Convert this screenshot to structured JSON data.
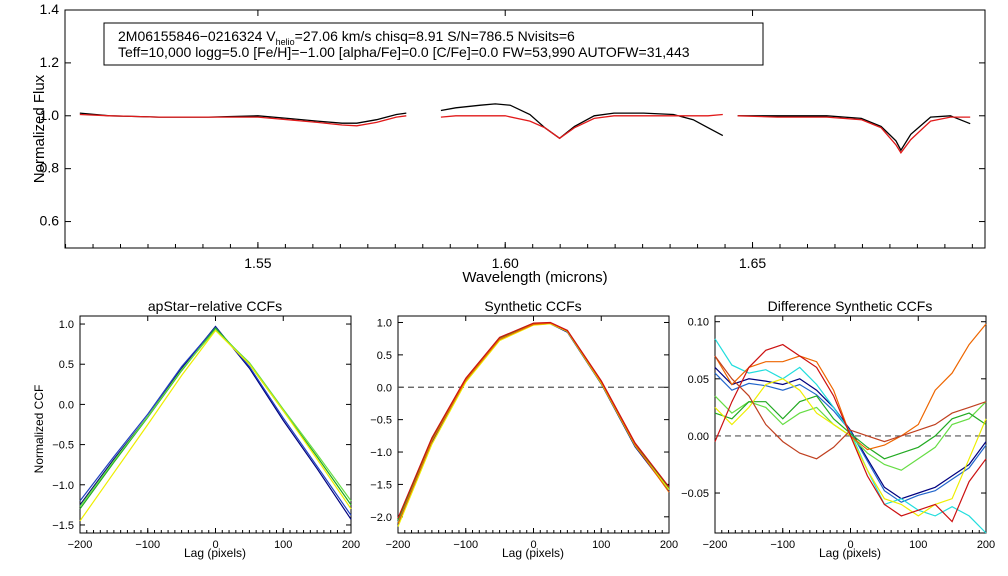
{
  "chart_data": [
    {
      "type": "line",
      "id": "spectrum",
      "xlabel": "Wavelength (microns)",
      "ylabel": "Normalized Flux",
      "xlim": [
        1.511,
        1.697
      ],
      "ylim": [
        0.5,
        1.4
      ],
      "xticks": [
        "1.55",
        "1.60",
        "1.65"
      ],
      "yticks": [
        "0.6",
        "0.8",
        "1.0",
        "1.2",
        "1.4"
      ],
      "info_box": {
        "line1_prefix": "2M06155846−0216324  V",
        "line1_sub": "helio",
        "line1_suffix": "=27.06 km/s  chisq=8.91  S/N=786.5  Nvisits=6",
        "line2": "Teff=10,000 logg=5.0 [Fe/H]=−1.00 [alpha/Fe]=0.0 [C/Fe]=0.0 FW=53,990 AUTOFW=31,443"
      },
      "chips": [
        {
          "range": [
            1.514,
            1.58
          ]
        },
        {
          "range": [
            1.587,
            1.644
          ]
        },
        {
          "range": [
            1.647,
            1.694
          ]
        }
      ],
      "series": [
        {
          "name": "observed",
          "color": "#000000",
          "x": [
            1.514,
            1.52,
            1.53,
            1.54,
            1.55,
            1.556,
            1.562,
            1.567,
            1.57,
            1.574,
            1.578,
            1.58,
            1.587,
            1.59,
            1.595,
            1.598,
            1.601,
            1.605,
            1.608,
            1.611,
            1.614,
            1.618,
            1.622,
            1.628,
            1.634,
            1.638,
            1.641,
            1.644,
            1.647,
            1.655,
            1.665,
            1.672,
            1.676,
            1.679,
            1.68,
            1.682,
            1.686,
            1.69,
            1.694
          ],
          "y": [
            1.01,
            1.0,
            0.995,
            0.995,
            1.0,
            0.99,
            0.98,
            0.972,
            0.972,
            0.985,
            1.005,
            1.01,
            1.02,
            1.03,
            1.04,
            1.045,
            1.04,
            1.005,
            0.955,
            0.915,
            0.96,
            1.0,
            1.01,
            1.01,
            1.005,
            0.985,
            0.955,
            0.925,
            1.0,
            1.0,
            1.0,
            0.99,
            0.96,
            0.905,
            0.87,
            0.93,
            0.995,
            1.0,
            0.97
          ]
        },
        {
          "name": "synthetic",
          "color": "#e11a1a",
          "x": [
            1.514,
            1.52,
            1.53,
            1.54,
            1.55,
            1.556,
            1.562,
            1.567,
            1.57,
            1.574,
            1.578,
            1.58,
            1.587,
            1.59,
            1.595,
            1.6,
            1.605,
            1.608,
            1.611,
            1.614,
            1.618,
            1.622,
            1.628,
            1.634,
            1.638,
            1.641,
            1.644,
            1.647,
            1.655,
            1.665,
            1.672,
            1.676,
            1.679,
            1.68,
            1.682,
            1.686,
            1.69,
            1.694
          ],
          "y": [
            1.005,
            1.0,
            0.995,
            0.995,
            0.995,
            0.985,
            0.975,
            0.965,
            0.962,
            0.975,
            0.995,
            1.0,
            0.995,
            1.0,
            1.0,
            1.0,
            0.98,
            0.955,
            0.915,
            0.955,
            0.99,
            1.0,
            1.0,
            1.0,
            1.0,
            1.0,
            1.005,
            1.0,
            0.995,
            0.995,
            0.985,
            0.955,
            0.89,
            0.86,
            0.91,
            0.98,
            0.995,
            0.995
          ]
        }
      ]
    },
    {
      "type": "line",
      "id": "apstar_ccf",
      "title": "apStar−relative CCFs",
      "xlabel": "Lag (pixels)",
      "ylabel": "Normalized CCF",
      "xlim": [
        -200,
        200
      ],
      "ylim": [
        -1.6,
        1.1
      ],
      "xticks": [
        "−200",
        "−100",
        "0",
        "100",
        "200"
      ],
      "yticks": [
        "−1.5",
        "−1.0",
        "−0.5",
        "0.0",
        "0.5",
        "1.0"
      ],
      "x": [
        -200,
        -150,
        -100,
        -50,
        0,
        50,
        100,
        150,
        200
      ],
      "series": [
        {
          "name": "navy",
          "color": "#00007f",
          "values": [
            -1.25,
            -0.68,
            -0.15,
            0.45,
            0.97,
            0.45,
            -0.2,
            -0.8,
            -1.43
          ]
        },
        {
          "name": "blue",
          "color": "#2040c0",
          "values": [
            -1.2,
            -0.65,
            -0.12,
            0.47,
            0.96,
            0.47,
            -0.17,
            -0.77,
            -1.38
          ]
        },
        {
          "name": "green",
          "color": "#22aa22",
          "values": [
            -1.3,
            -0.72,
            -0.16,
            0.42,
            0.95,
            0.5,
            -0.08,
            -0.65,
            -1.25
          ]
        },
        {
          "name": "lime",
          "color": "#66dd44",
          "values": [
            -1.27,
            -0.7,
            -0.15,
            0.43,
            0.93,
            0.52,
            -0.06,
            -0.62,
            -1.2
          ]
        },
        {
          "name": "yellow",
          "color": "#eeee00",
          "values": [
            -1.45,
            -0.85,
            -0.25,
            0.36,
            0.92,
            0.5,
            -0.08,
            -0.68,
            -1.3
          ]
        }
      ]
    },
    {
      "type": "line",
      "id": "synthetic_ccf",
      "title": "Synthetic CCFs",
      "xlabel": "Lag (pixels)",
      "ylabel": "",
      "xlim": [
        -200,
        200
      ],
      "ylim": [
        -2.25,
        1.1
      ],
      "reference_line": 0,
      "xticks": [
        "−200",
        "−100",
        "0",
        "100",
        "200"
      ],
      "yticks": [
        "−2.0",
        "−1.5",
        "−1.0",
        "−0.5",
        "0.0",
        "0.5",
        "1.0"
      ],
      "x": [
        -200,
        -150,
        -100,
        -50,
        0,
        25,
        50,
        100,
        150,
        200
      ],
      "series": [
        {
          "name": "navy",
          "color": "#00007f",
          "values": [
            -2.12,
            -0.85,
            0.1,
            0.73,
            0.97,
            0.98,
            0.85,
            0.05,
            -0.92,
            -1.6
          ]
        },
        {
          "name": "cyan",
          "color": "#22dddd",
          "values": [
            -2.08,
            -0.82,
            0.12,
            0.75,
            0.98,
            0.99,
            0.86,
            0.07,
            -0.9,
            -1.58
          ]
        },
        {
          "name": "green",
          "color": "#22aa22",
          "values": [
            -2.05,
            -0.8,
            0.13,
            0.76,
            0.98,
            0.99,
            0.87,
            0.08,
            -0.88,
            -1.56
          ]
        },
        {
          "name": "yellow",
          "color": "#eeee00",
          "values": [
            -2.15,
            -0.88,
            0.08,
            0.72,
            0.96,
            0.98,
            0.86,
            0.06,
            -0.9,
            -1.58
          ]
        },
        {
          "name": "orange",
          "color": "#ee6600",
          "values": [
            -2.1,
            -0.83,
            0.11,
            0.74,
            0.97,
            0.99,
            0.87,
            0.08,
            -0.89,
            -1.62
          ]
        },
        {
          "name": "red",
          "color": "#cc1111",
          "values": [
            -2.02,
            -0.78,
            0.14,
            0.77,
            0.99,
            1.0,
            0.88,
            0.1,
            -0.86,
            -1.54
          ]
        }
      ]
    },
    {
      "type": "line",
      "id": "difference_ccf",
      "title": "Difference Synthetic CCFs",
      "xlabel": "Lag (pixels)",
      "ylabel": "",
      "xlim": [
        -200,
        200
      ],
      "ylim": [
        -0.085,
        0.105
      ],
      "reference_line": 0,
      "xticks": [
        "−200",
        "−100",
        "0",
        "100",
        "200"
      ],
      "yticks": [
        "−0.05",
        "0.00",
        "0.05",
        "0.10"
      ],
      "x": [
        -200,
        -175,
        -150,
        -125,
        -100,
        -75,
        -50,
        -25,
        0,
        25,
        50,
        75,
        100,
        125,
        150,
        175,
        200
      ],
      "series": [
        {
          "name": "navy",
          "color": "#00007f",
          "values": [
            0.06,
            0.045,
            0.05,
            0.048,
            0.045,
            0.05,
            0.04,
            0.025,
            0.005,
            -0.02,
            -0.045,
            -0.055,
            -0.05,
            -0.045,
            -0.035,
            -0.025,
            -0.005
          ]
        },
        {
          "name": "blue",
          "color": "#2266cc",
          "values": [
            0.055,
            0.04,
            0.046,
            0.044,
            0.04,
            0.045,
            0.036,
            0.022,
            0.004,
            -0.022,
            -0.048,
            -0.058,
            -0.052,
            -0.048,
            -0.038,
            -0.028,
            -0.008
          ]
        },
        {
          "name": "cyan",
          "color": "#22dddd",
          "values": [
            0.085,
            0.062,
            0.055,
            0.058,
            0.05,
            0.06,
            0.045,
            0.025,
            0.003,
            -0.03,
            -0.06,
            -0.055,
            -0.065,
            -0.07,
            -0.062,
            -0.07,
            -0.085
          ]
        },
        {
          "name": "lime",
          "color": "#66dd44",
          "values": [
            0.035,
            0.02,
            0.03,
            0.025,
            0.01,
            0.02,
            0.025,
            0.01,
            0.0,
            -0.015,
            -0.025,
            -0.03,
            -0.02,
            -0.01,
            0.01,
            0.015,
            0.03
          ]
        },
        {
          "name": "green",
          "color": "#22aa22",
          "values": [
            0.02,
            0.015,
            0.03,
            0.03,
            0.015,
            0.03,
            0.035,
            0.015,
            0.002,
            -0.01,
            -0.02,
            -0.015,
            -0.01,
            0.0,
            0.015,
            0.02,
            0.01
          ]
        },
        {
          "name": "yellow",
          "color": "#eeee00",
          "values": [
            0.025,
            0.01,
            0.025,
            0.045,
            0.05,
            0.04,
            0.02,
            0.01,
            0.0,
            -0.03,
            -0.055,
            -0.06,
            -0.07,
            -0.06,
            -0.055,
            -0.02,
            0.015
          ]
        },
        {
          "name": "orange",
          "color": "#ee6600",
          "values": [
            0.07,
            0.045,
            0.06,
            0.065,
            0.065,
            0.07,
            0.065,
            0.04,
            0.0,
            -0.012,
            -0.008,
            0.0,
            0.01,
            0.04,
            0.055,
            0.08,
            0.098
          ]
        },
        {
          "name": "red",
          "color": "#cc1111",
          "values": [
            -0.005,
            0.03,
            0.06,
            0.075,
            0.08,
            0.07,
            0.06,
            0.035,
            0.0,
            -0.035,
            -0.06,
            -0.07,
            -0.065,
            -0.06,
            -0.075,
            -0.04,
            -0.02
          ]
        },
        {
          "name": "sienna",
          "color": "#c04020",
          "values": [
            0.07,
            0.05,
            0.035,
            0.01,
            -0.005,
            -0.015,
            -0.02,
            -0.01,
            0.005,
            0.0,
            -0.005,
            0.0,
            0.005,
            0.01,
            0.02,
            0.025,
            0.03
          ]
        }
      ]
    }
  ]
}
